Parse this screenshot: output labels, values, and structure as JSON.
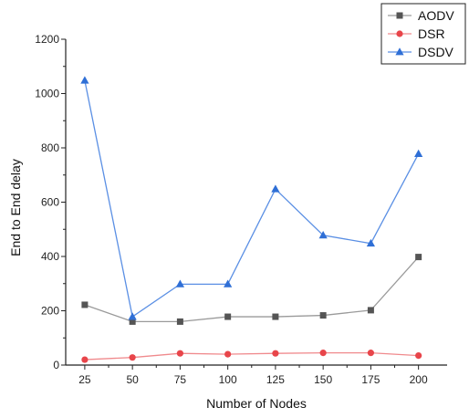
{
  "chart_data": {
    "type": "line",
    "title": "",
    "xlabel": "Number of Nodes",
    "ylabel": "End to End delay",
    "categories": [
      "25",
      "50",
      "75",
      "100",
      "125",
      "150",
      "175",
      "200"
    ],
    "x": [
      25,
      50,
      75,
      100,
      125,
      150,
      175,
      200
    ],
    "xlim": [
      15,
      215
    ],
    "ylim": [
      0,
      1200
    ],
    "yticks": [
      0,
      200,
      400,
      600,
      800,
      1000,
      1200
    ],
    "grid": false,
    "legend_position": "top-right",
    "series": [
      {
        "name": "AODV",
        "marker": "square",
        "color": "#555555",
        "values": [
          222,
          160,
          160,
          178,
          178,
          183,
          202,
          398
        ]
      },
      {
        "name": "DSR",
        "marker": "circle",
        "color": "#e8454a",
        "values": [
          20,
          28,
          43,
          40,
          43,
          45,
          45,
          35
        ]
      },
      {
        "name": "DSDV",
        "marker": "triangle",
        "color": "#2f6fd6",
        "values": [
          1048,
          178,
          298,
          298,
          648,
          478,
          448,
          778
        ]
      }
    ]
  }
}
